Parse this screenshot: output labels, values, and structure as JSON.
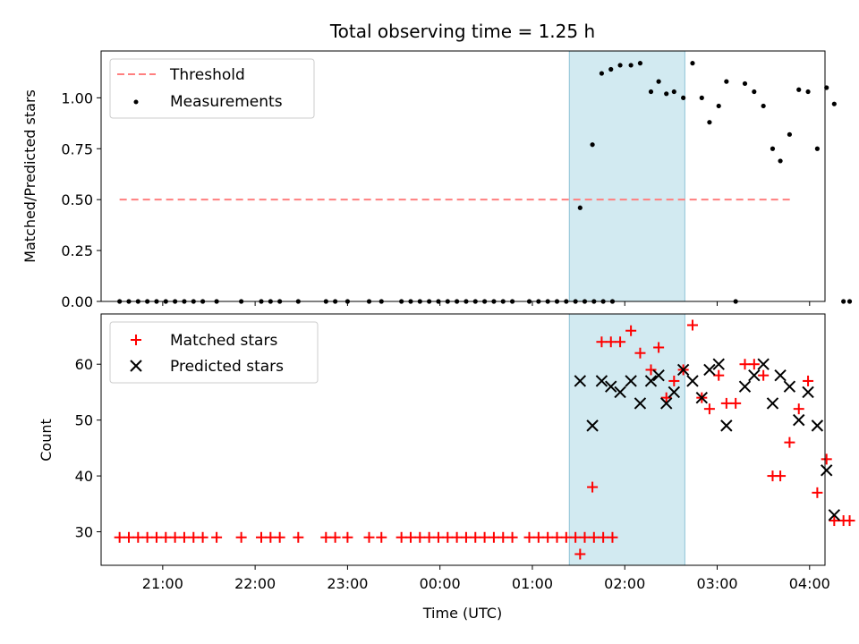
{
  "colors": {
    "threshold": "#ff7f7f",
    "measurement": "#000000",
    "matched": "#ff0000",
    "predicted": "#000000",
    "span_fill": "#add8e6",
    "span_edge": "#8fc4d6"
  },
  "chart_data": [
    {
      "type": "scatter",
      "title": "Total observing time = 1.25 h",
      "ylabel": "Matched/Predicted stars",
      "xlabel": "",
      "xlim": [
        "20:20",
        "04:10"
      ],
      "ylim": [
        0,
        1.23
      ],
      "yticks": [
        0,
        0.25,
        0.5,
        0.75,
        1.0
      ],
      "ytick_labels": [
        "0.00",
        "0.25",
        "0.50",
        "0.75",
        "1.00"
      ],
      "highlight_span": [
        "01:24",
        "02:39"
      ],
      "legend_position": "upper-left",
      "series": [
        {
          "name": "Threshold",
          "kind": "dashed-line",
          "x": [
            "20:32",
            "03:50"
          ],
          "y": [
            0.5,
            0.5
          ]
        },
        {
          "name": "Measurements",
          "kind": "dot",
          "points": [
            [
              "20:32",
              0
            ],
            [
              "20:38",
              0
            ],
            [
              "20:44",
              0
            ],
            [
              "20:50",
              0
            ],
            [
              "20:56",
              0
            ],
            [
              "21:02",
              0
            ],
            [
              "21:08",
              0
            ],
            [
              "21:14",
              0
            ],
            [
              "21:20",
              0
            ],
            [
              "21:26",
              0
            ],
            [
              "21:35",
              0
            ],
            [
              "21:51",
              0
            ],
            [
              "22:04",
              0
            ],
            [
              "22:10",
              0
            ],
            [
              "22:16",
              0
            ],
            [
              "22:28",
              0
            ],
            [
              "22:46",
              0
            ],
            [
              "22:52",
              0
            ],
            [
              "23:00",
              0
            ],
            [
              "23:14",
              0
            ],
            [
              "23:22",
              0
            ],
            [
              "23:35",
              0
            ],
            [
              "23:41",
              0
            ],
            [
              "23:47",
              0
            ],
            [
              "23:53",
              0
            ],
            [
              "23:59",
              0
            ],
            [
              "00:05",
              0
            ],
            [
              "00:11",
              0
            ],
            [
              "00:17",
              0
            ],
            [
              "00:23",
              0
            ],
            [
              "00:29",
              0
            ],
            [
              "00:35",
              0
            ],
            [
              "00:41",
              0
            ],
            [
              "00:47",
              0
            ],
            [
              "00:58",
              0
            ],
            [
              "01:04",
              0
            ],
            [
              "01:10",
              0
            ],
            [
              "01:16",
              0
            ],
            [
              "01:22",
              0
            ],
            [
              "01:28",
              0
            ],
            [
              "01:34",
              0
            ],
            [
              "01:40",
              0
            ],
            [
              "01:46",
              0
            ],
            [
              "01:52",
              0
            ],
            [
              "01:31",
              0.46
            ],
            [
              "01:39",
              0.77
            ],
            [
              "01:45",
              1.12
            ],
            [
              "01:51",
              1.14
            ],
            [
              "01:57",
              1.16
            ],
            [
              "02:04",
              1.16
            ],
            [
              "02:10",
              1.17
            ],
            [
              "02:17",
              1.03
            ],
            [
              "02:22",
              1.08
            ],
            [
              "02:27",
              1.02
            ],
            [
              "02:32",
              1.03
            ],
            [
              "02:38",
              1.0
            ],
            [
              "02:44",
              1.17
            ],
            [
              "02:50",
              1.0
            ],
            [
              "02:55",
              0.88
            ],
            [
              "03:01",
              0.96
            ],
            [
              "03:06",
              1.08
            ],
            [
              "03:12",
              0.0
            ],
            [
              "03:18",
              1.07
            ],
            [
              "03:24",
              1.03
            ],
            [
              "03:30",
              0.96
            ],
            [
              "03:36",
              0.75
            ],
            [
              "03:41",
              0.69
            ],
            [
              "03:47",
              0.82
            ],
            [
              "03:53",
              1.04
            ],
            [
              "03:59",
              1.03
            ],
            [
              "04:05",
              0.75
            ],
            [
              "04:11",
              1.05
            ],
            [
              "04:16",
              0.97
            ],
            [
              "04:22",
              0.0
            ],
            [
              "04:26",
              0.0
            ]
          ]
        }
      ]
    },
    {
      "type": "scatter",
      "title": "",
      "ylabel": "Count",
      "xlabel": "Time (UTC)",
      "xlim": [
        "20:20",
        "04:10"
      ],
      "ylim": [
        24,
        69
      ],
      "yticks": [
        30,
        40,
        50,
        60
      ],
      "ytick_labels": [
        "30",
        "40",
        "50",
        "60"
      ],
      "xticks": [
        "21:00",
        "22:00",
        "23:00",
        "00:00",
        "01:00",
        "02:00",
        "03:00",
        "04:00"
      ],
      "highlight_span": [
        "01:24",
        "02:39"
      ],
      "legend_position": "upper-left",
      "series": [
        {
          "name": "Matched stars",
          "kind": "plus",
          "points": [
            [
              "20:32",
              29
            ],
            [
              "20:38",
              29
            ],
            [
              "20:44",
              29
            ],
            [
              "20:50",
              29
            ],
            [
              "20:56",
              29
            ],
            [
              "21:02",
              29
            ],
            [
              "21:08",
              29
            ],
            [
              "21:14",
              29
            ],
            [
              "21:20",
              29
            ],
            [
              "21:26",
              29
            ],
            [
              "21:35",
              29
            ],
            [
              "21:51",
              29
            ],
            [
              "22:04",
              29
            ],
            [
              "22:10",
              29
            ],
            [
              "22:16",
              29
            ],
            [
              "22:28",
              29
            ],
            [
              "22:46",
              29
            ],
            [
              "22:52",
              29
            ],
            [
              "23:00",
              29
            ],
            [
              "23:14",
              29
            ],
            [
              "23:22",
              29
            ],
            [
              "23:35",
              29
            ],
            [
              "23:41",
              29
            ],
            [
              "23:47",
              29
            ],
            [
              "23:53",
              29
            ],
            [
              "23:59",
              29
            ],
            [
              "00:05",
              29
            ],
            [
              "00:11",
              29
            ],
            [
              "00:17",
              29
            ],
            [
              "00:23",
              29
            ],
            [
              "00:29",
              29
            ],
            [
              "00:35",
              29
            ],
            [
              "00:41",
              29
            ],
            [
              "00:47",
              29
            ],
            [
              "00:58",
              29
            ],
            [
              "01:04",
              29
            ],
            [
              "01:10",
              29
            ],
            [
              "01:16",
              29
            ],
            [
              "01:22",
              29
            ],
            [
              "01:28",
              29
            ],
            [
              "01:34",
              29
            ],
            [
              "01:40",
              29
            ],
            [
              "01:46",
              29
            ],
            [
              "01:52",
              29
            ],
            [
              "01:31",
              26
            ],
            [
              "01:39",
              38
            ],
            [
              "01:45",
              64
            ],
            [
              "01:51",
              64
            ],
            [
              "01:57",
              64
            ],
            [
              "02:04",
              66
            ],
            [
              "02:10",
              62
            ],
            [
              "02:17",
              59
            ],
            [
              "02:22",
              63
            ],
            [
              "02:27",
              54
            ],
            [
              "02:32",
              57
            ],
            [
              "02:38",
              59
            ],
            [
              "02:44",
              67
            ],
            [
              "02:50",
              54
            ],
            [
              "02:55",
              52
            ],
            [
              "03:01",
              58
            ],
            [
              "03:06",
              53
            ],
            [
              "03:12",
              53
            ],
            [
              "03:18",
              60
            ],
            [
              "03:24",
              60
            ],
            [
              "03:30",
              58
            ],
            [
              "03:36",
              40
            ],
            [
              "03:41",
              40
            ],
            [
              "03:47",
              46
            ],
            [
              "03:53",
              52
            ],
            [
              "03:59",
              57
            ],
            [
              "04:05",
              37
            ],
            [
              "04:11",
              43
            ],
            [
              "04:16",
              32
            ],
            [
              "04:22",
              32
            ],
            [
              "04:26",
              32
            ]
          ]
        },
        {
          "name": "Predicted stars",
          "kind": "x",
          "points": [
            [
              "01:31",
              57
            ],
            [
              "01:39",
              49
            ],
            [
              "01:45",
              57
            ],
            [
              "01:51",
              56
            ],
            [
              "01:57",
              55
            ],
            [
              "02:04",
              57
            ],
            [
              "02:10",
              53
            ],
            [
              "02:17",
              57
            ],
            [
              "02:22",
              58
            ],
            [
              "02:27",
              53
            ],
            [
              "02:32",
              55
            ],
            [
              "02:38",
              59
            ],
            [
              "02:44",
              57
            ],
            [
              "02:50",
              54
            ],
            [
              "02:55",
              59
            ],
            [
              "03:01",
              60
            ],
            [
              "03:06",
              49
            ],
            [
              "03:18",
              56
            ],
            [
              "03:24",
              58
            ],
            [
              "03:30",
              60
            ],
            [
              "03:36",
              53
            ],
            [
              "03:41",
              58
            ],
            [
              "03:47",
              56
            ],
            [
              "03:53",
              50
            ],
            [
              "03:59",
              55
            ],
            [
              "04:05",
              49
            ],
            [
              "04:11",
              41
            ],
            [
              "04:16",
              33
            ]
          ]
        }
      ]
    }
  ]
}
